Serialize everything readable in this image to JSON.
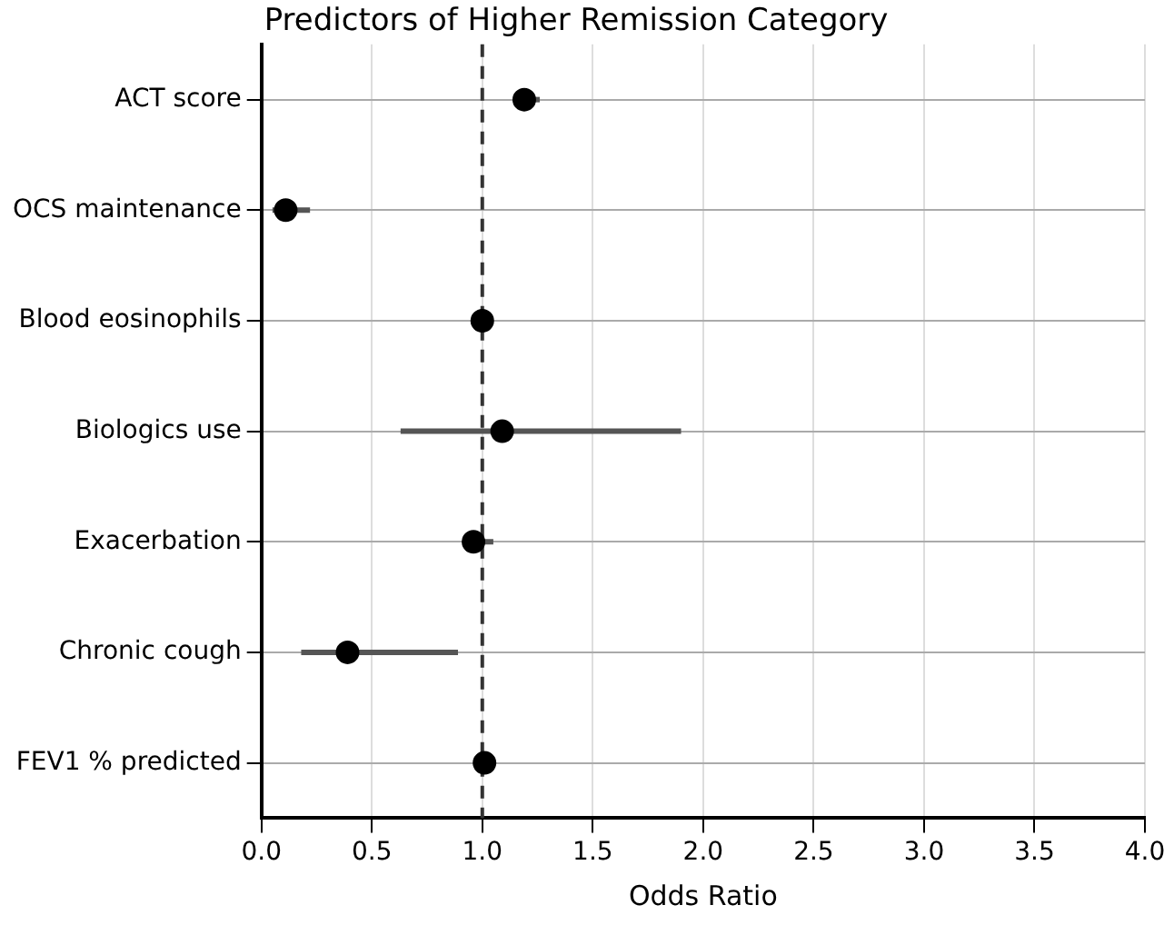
{
  "chart_data": {
    "type": "scatter",
    "orientation": "horizontal",
    "title": "Predictors of Higher Remission Category",
    "xlabel": "Odds Ratio",
    "categories": [
      "ACT score",
      "OCS maintenance",
      "Blood eosinophils",
      "Biologics use",
      "Exacerbation",
      "Chronic cough",
      "FEV1 % predicted"
    ],
    "series": [
      {
        "color": "#000000",
        "values": [
          1.19,
          0.11,
          1.0,
          1.09,
          0.96,
          0.39,
          1.01
        ],
        "errors": [
          [
            1.14,
            1.26
          ],
          [
            0.05,
            0.22
          ],
          null,
          [
            0.63,
            1.9
          ],
          [
            0.91,
            1.05
          ],
          [
            0.18,
            0.89
          ],
          null
        ]
      }
    ],
    "xlim": [
      0,
      4
    ],
    "xticks": [
      {
        "value": 0,
        "label": "0.0"
      },
      {
        "value": 0.5,
        "label": "0.5"
      },
      {
        "value": 1,
        "label": "1.0"
      },
      {
        "value": 1.5,
        "label": "1.5"
      },
      {
        "value": 2,
        "label": "2.0"
      },
      {
        "value": 2.5,
        "label": "2.5"
      },
      {
        "value": 3,
        "label": "3.0"
      },
      {
        "value": 3.5,
        "label": "3.5"
      },
      {
        "value": 4,
        "label": "4.0"
      }
    ],
    "ref_lines": [
      {
        "axis": "x",
        "value": 1,
        "line_style": "dashed",
        "color": "#333333"
      }
    ],
    "grid": true,
    "marker": "circle",
    "legend": false
  }
}
